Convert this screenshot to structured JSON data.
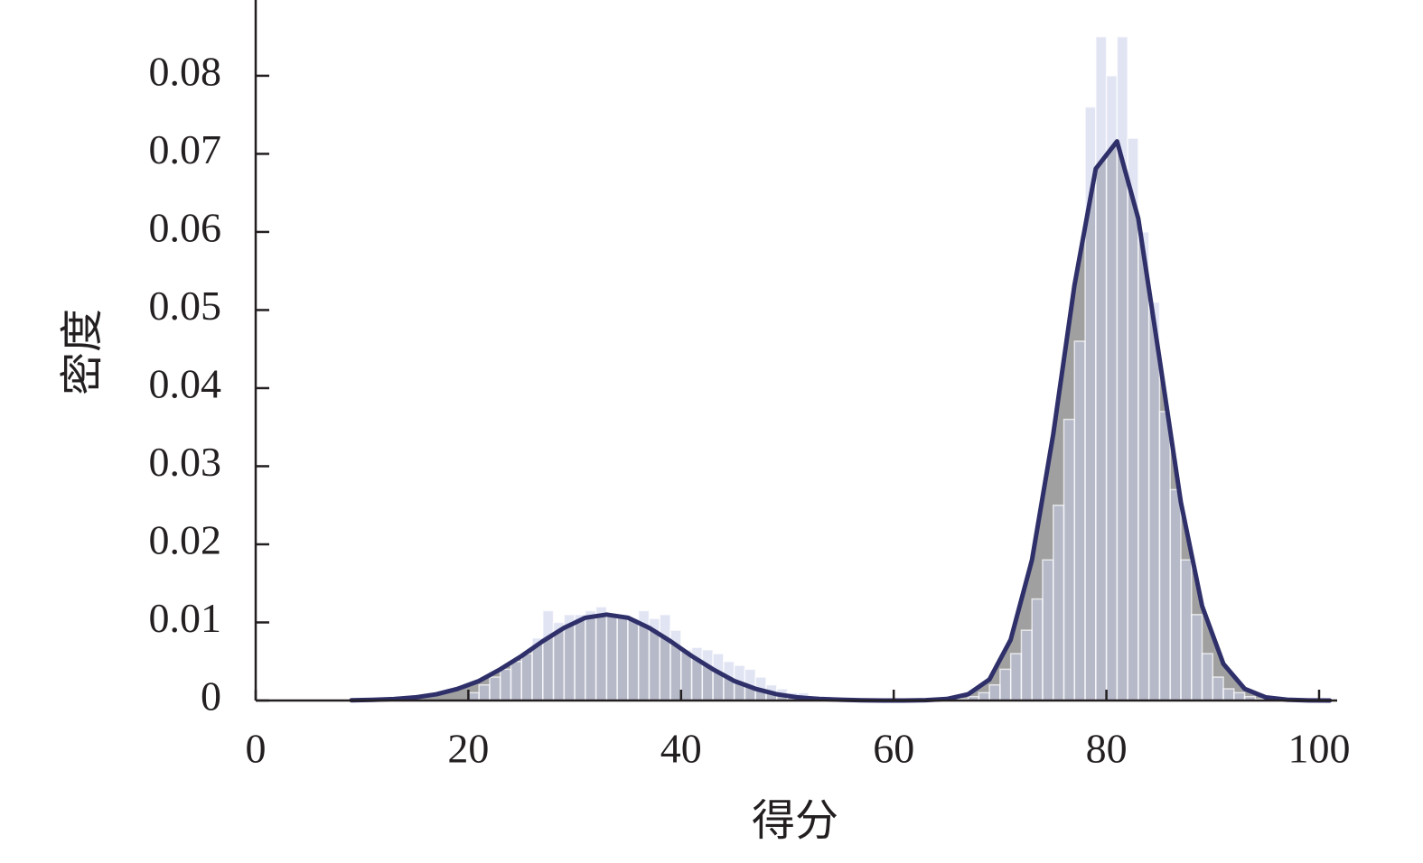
{
  "chart_data": {
    "type": "histogram",
    "xlabel": "得分",
    "ylabel": "密度",
    "bins": [
      20,
      21,
      22,
      23,
      24,
      25,
      26,
      27,
      28,
      29,
      30,
      31,
      32,
      33,
      34,
      35,
      36,
      37,
      38,
      39,
      40,
      41,
      42,
      43,
      44,
      45,
      46,
      47,
      48,
      49,
      50,
      51,
      52,
      53,
      54,
      55,
      56,
      57,
      58,
      59,
      60,
      61,
      62,
      63,
      64,
      65,
      66,
      67,
      68,
      69,
      70,
      71,
      72,
      73,
      74,
      75,
      76,
      77,
      78,
      79,
      80,
      81,
      82,
      83,
      84,
      85,
      86,
      87,
      88,
      89,
      90,
      91,
      92,
      93,
      94,
      95,
      96,
      97,
      98,
      99,
      100
    ],
    "counts": [
      0.001,
      0.002,
      0.003,
      0.004,
      0.005,
      0.006,
      0.008,
      0.0115,
      0.01,
      0.011,
      0.011,
      0.0115,
      0.012,
      0.011,
      0.011,
      0.0105,
      0.0115,
      0.0105,
      0.011,
      0.009,
      0.0065,
      0.0068,
      0.0065,
      0.006,
      0.005,
      0.0045,
      0.004,
      0.003,
      0.002,
      0.0015,
      0.001,
      0.001,
      0.0005,
      0.0005,
      0.0002,
      0.0002,
      0.0001,
      0,
      0,
      0,
      0,
      0,
      0,
      0,
      0,
      0,
      0.0002,
      0.0005,
      0.001,
      0.002,
      0.004,
      0.006,
      0.009,
      0.013,
      0.018,
      0.025,
      0.036,
      0.046,
      0.076,
      0.085,
      0.08,
      0.085,
      0.072,
      0.06,
      0.051,
      0.037,
      0.027,
      0.018,
      0.011,
      0.006,
      0.003,
      0.0015,
      0.001,
      0.0005,
      0.0002,
      0,
      0,
      0,
      0,
      0
    ],
    "color": "#c8cdea",
    "density": {
      "color": "#2f306a",
      "fill": "#8f8f8f",
      "x": [
        9,
        11,
        13,
        15,
        17,
        19,
        21,
        23,
        25,
        27,
        29,
        31,
        33,
        35,
        37,
        39,
        41,
        43,
        45,
        47,
        49,
        51,
        53,
        55,
        57,
        59,
        61,
        63,
        65,
        67,
        69,
        71,
        73,
        75,
        77,
        79,
        81,
        83,
        85,
        87,
        89,
        91,
        93,
        95,
        97,
        99,
        101
      ],
      "values": [
        3e-05,
        8e-05,
        0.00019,
        0.0004,
        0.0008,
        0.0015,
        0.0025,
        0.004,
        0.0057,
        0.0076,
        0.0093,
        0.0106,
        0.011,
        0.0106,
        0.0093,
        0.0076,
        0.0057,
        0.004,
        0.0025,
        0.0015,
        0.0008,
        0.0004,
        0.0002,
        0.0001,
        3e-05,
        0,
        0,
        4e-05,
        0.0002,
        0.0008,
        0.0027,
        0.0078,
        0.018,
        0.0341,
        0.0532,
        0.0681,
        0.0716,
        0.0617,
        0.0437,
        0.0254,
        0.0121,
        0.0047,
        0.0015,
        0.0004,
        0.0001,
        2e-05,
        0
      ]
    },
    "xlim": [
      0,
      101.7
    ],
    "ylim": [
      0,
      0.0897
    ],
    "xticks": [
      0,
      20,
      40,
      60,
      80,
      100
    ],
    "yticks": [
      0,
      0.01,
      0.02,
      0.03,
      0.04,
      0.05,
      0.06,
      0.07,
      0.08
    ]
  }
}
